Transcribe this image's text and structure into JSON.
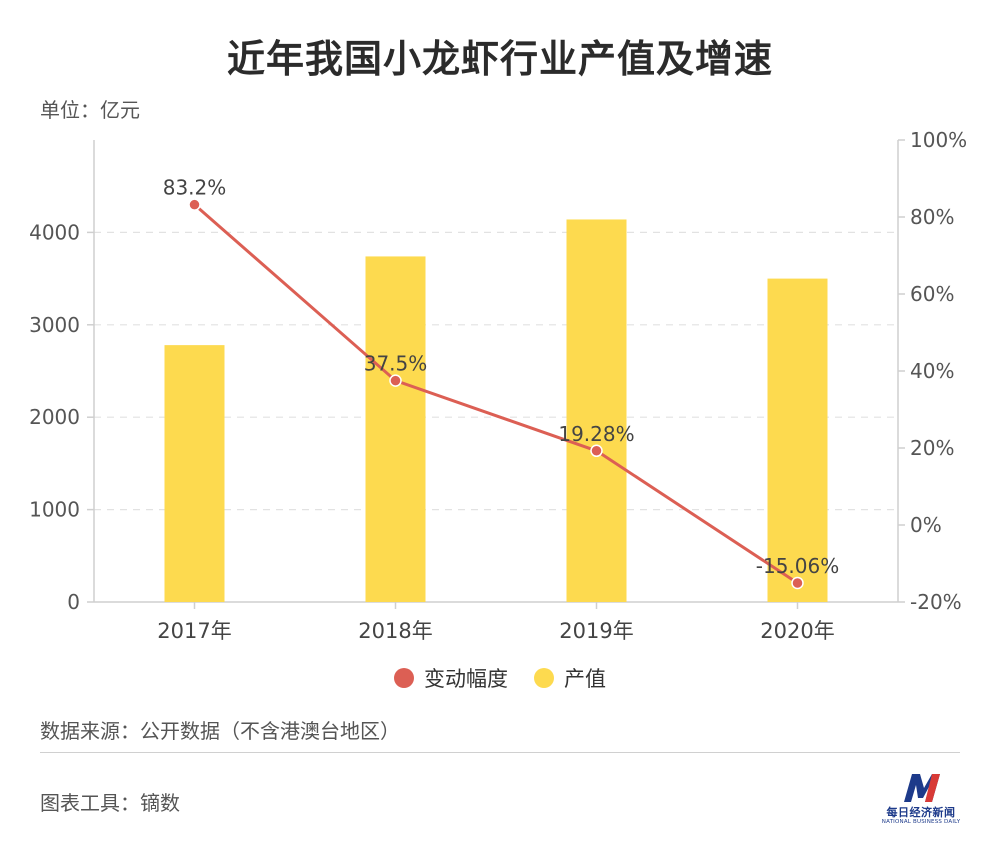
{
  "title": "近年我国小龙虾行业产值及增速",
  "unit_label": "单位：亿元",
  "source_label": "数据来源：公开数据（不含港澳台地区）",
  "tool_label": "图表工具：镝数",
  "logo": {
    "name": "每日经济新闻",
    "subtitle": "NATIONAL BUSINESS DAILY"
  },
  "colors": {
    "bar": "#FDDA4F",
    "line": "#DC5F54",
    "grid": "#e2e2e2",
    "axis": "#cfcfcf",
    "tick": "#555555"
  },
  "legend": [
    {
      "label": "变动幅度",
      "color": "#DC5F54"
    },
    {
      "label": "产值",
      "color": "#FDDA4F"
    }
  ],
  "chart_data": {
    "type": "bar+line",
    "categories": [
      "2017年",
      "2018年",
      "2019年",
      "2020年"
    ],
    "series": [
      {
        "name": "产值",
        "type": "bar",
        "axis": "left",
        "values": [
          2780,
          3740,
          4140,
          3500
        ]
      },
      {
        "name": "变动幅度",
        "type": "line",
        "axis": "right",
        "values": [
          83.2,
          37.5,
          19.28,
          -15.06
        ],
        "labels": [
          "83.2%",
          "37.5%",
          "19.28%",
          "-15.06%"
        ]
      }
    ],
    "y_left": {
      "range": [
        0,
        5000
      ],
      "ticks": [
        0,
        1000,
        2000,
        3000,
        4000
      ]
    },
    "y_right": {
      "range": [
        -20,
        100
      ],
      "ticks": [
        -20,
        0,
        20,
        40,
        60,
        80,
        100
      ],
      "tick_labels": [
        "-20%",
        "0%",
        "20%",
        "40%",
        "60%",
        "80%",
        "100%"
      ]
    },
    "grid": true,
    "legend_position": "bottom"
  }
}
